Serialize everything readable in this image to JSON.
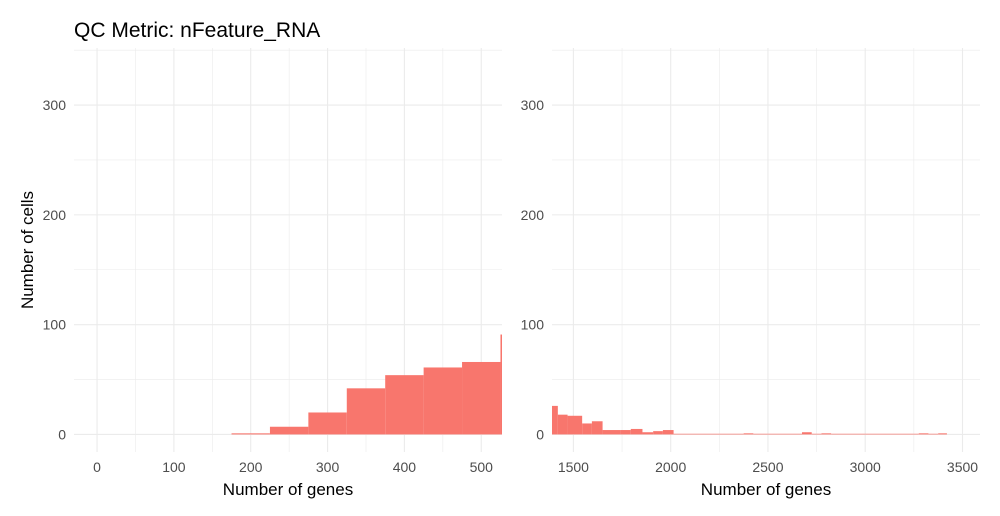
{
  "title": "QC Metric: nFeature_RNA",
  "colors": {
    "bar": "#f8766d",
    "grid": "#ebebeb",
    "tick_text": "#4d4d4d"
  },
  "chart_data": [
    {
      "type": "bar",
      "title": "QC Metric: nFeature_RNA",
      "xlabel": "Number of genes",
      "ylabel": "Number of cells",
      "xlim": [
        -30,
        527
      ],
      "ylim": [
        -16,
        352
      ],
      "xticks": [
        0,
        100,
        200,
        300,
        400,
        500
      ],
      "yticks": [
        0,
        100,
        200,
        300
      ],
      "grid": true,
      "bins": [
        {
          "x0": 175,
          "x1": 225,
          "count": 1
        },
        {
          "x0": 225,
          "x1": 275,
          "count": 7
        },
        {
          "x0": 275,
          "x1": 325,
          "count": 20
        },
        {
          "x0": 325,
          "x1": 375,
          "count": 42
        },
        {
          "x0": 375,
          "x1": 425,
          "count": 54
        },
        {
          "x0": 425,
          "x1": 475,
          "count": 61
        },
        {
          "x0": 475,
          "x1": 525,
          "count": 66
        },
        {
          "x0": 525,
          "x1": 527,
          "count": 91
        }
      ]
    },
    {
      "type": "bar",
      "xlabel": "Number of genes",
      "ylabel": "",
      "xlim": [
        1390,
        3590
      ],
      "ylim": [
        -16,
        352
      ],
      "xticks": [
        1500,
        2000,
        2500,
        3000,
        3500
      ],
      "yticks": [
        0,
        100,
        200,
        300
      ],
      "grid": true,
      "bins": [
        {
          "x0": 1390,
          "x1": 1420,
          "count": 26
        },
        {
          "x0": 1420,
          "x1": 1470,
          "count": 18
        },
        {
          "x0": 1470,
          "x1": 1545,
          "count": 17
        },
        {
          "x0": 1545,
          "x1": 1595,
          "count": 10
        },
        {
          "x0": 1595,
          "x1": 1650,
          "count": 12
        },
        {
          "x0": 1650,
          "x1": 1740,
          "count": 4
        },
        {
          "x0": 1740,
          "x1": 1795,
          "count": 4
        },
        {
          "x0": 1795,
          "x1": 1855,
          "count": 5
        },
        {
          "x0": 1855,
          "x1": 1910,
          "count": 2
        },
        {
          "x0": 1910,
          "x1": 1960,
          "count": 3
        },
        {
          "x0": 1960,
          "x1": 2015,
          "count": 4
        },
        {
          "x0": 2015,
          "x1": 2375,
          "count": 0.6
        },
        {
          "x0": 2375,
          "x1": 2425,
          "count": 1
        },
        {
          "x0": 2425,
          "x1": 2675,
          "count": 0.6
        },
        {
          "x0": 2675,
          "x1": 2725,
          "count": 2
        },
        {
          "x0": 2725,
          "x1": 2775,
          "count": 0.6
        },
        {
          "x0": 2775,
          "x1": 2825,
          "count": 1
        },
        {
          "x0": 2825,
          "x1": 3275,
          "count": 0.6
        },
        {
          "x0": 3275,
          "x1": 3325,
          "count": 1
        },
        {
          "x0": 3325,
          "x1": 3375,
          "count": 0.6
        },
        {
          "x0": 3375,
          "x1": 3420,
          "count": 1
        }
      ]
    }
  ]
}
